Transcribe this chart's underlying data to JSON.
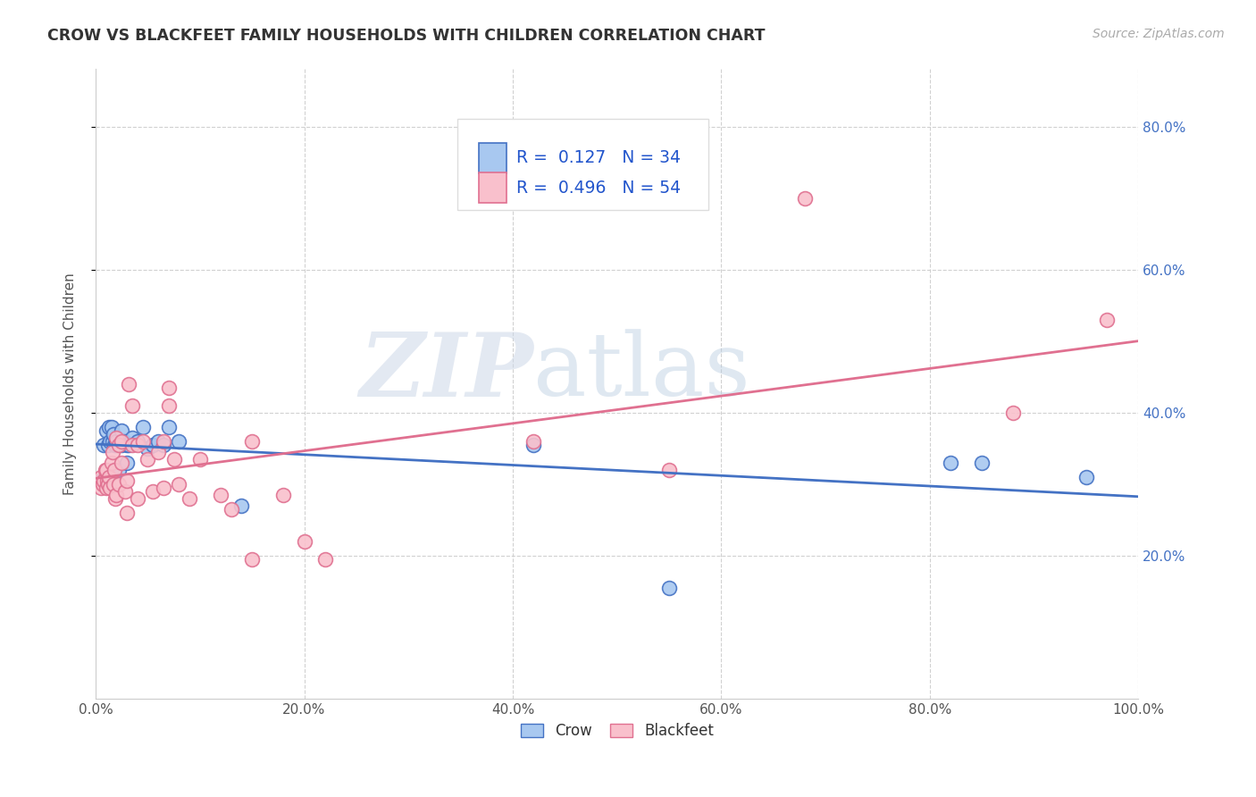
{
  "title": "CROW VS BLACKFEET FAMILY HOUSEHOLDS WITH CHILDREN CORRELATION CHART",
  "source": "Source: ZipAtlas.com",
  "ylabel": "Family Households with Children",
  "crow_R": "0.127",
  "crow_N": "34",
  "blackfeet_R": "0.496",
  "blackfeet_N": "54",
  "crow_color": "#a8c8f0",
  "crow_color_dark": "#4472C4",
  "blackfeet_color": "#f9c0cc",
  "blackfeet_color_dark": "#E07090",
  "crow_x": [
    0.005,
    0.008,
    0.01,
    0.012,
    0.013,
    0.014,
    0.015,
    0.016,
    0.017,
    0.018,
    0.02,
    0.02,
    0.022,
    0.025,
    0.025,
    0.027,
    0.03,
    0.03,
    0.032,
    0.035,
    0.04,
    0.045,
    0.05,
    0.055,
    0.06,
    0.065,
    0.07,
    0.08,
    0.14,
    0.42,
    0.55,
    0.82,
    0.85,
    0.95
  ],
  "crow_y": [
    0.305,
    0.355,
    0.375,
    0.355,
    0.38,
    0.36,
    0.38,
    0.36,
    0.37,
    0.355,
    0.355,
    0.36,
    0.32,
    0.375,
    0.355,
    0.36,
    0.355,
    0.33,
    0.355,
    0.365,
    0.36,
    0.38,
    0.35,
    0.355,
    0.36,
    0.355,
    0.38,
    0.36,
    0.27,
    0.355,
    0.155,
    0.33,
    0.33,
    0.31
  ],
  "blackfeet_x": [
    0.005,
    0.005,
    0.007,
    0.008,
    0.009,
    0.01,
    0.01,
    0.011,
    0.012,
    0.013,
    0.014,
    0.015,
    0.016,
    0.017,
    0.018,
    0.019,
    0.02,
    0.02,
    0.022,
    0.022,
    0.025,
    0.025,
    0.028,
    0.03,
    0.03,
    0.032,
    0.035,
    0.035,
    0.04,
    0.04,
    0.045,
    0.05,
    0.055,
    0.06,
    0.065,
    0.065,
    0.07,
    0.07,
    0.075,
    0.08,
    0.09,
    0.1,
    0.12,
    0.13,
    0.15,
    0.15,
    0.18,
    0.2,
    0.22,
    0.42,
    0.55,
    0.68,
    0.88,
    0.97
  ],
  "blackfeet_y": [
    0.31,
    0.295,
    0.3,
    0.305,
    0.32,
    0.32,
    0.295,
    0.305,
    0.3,
    0.31,
    0.295,
    0.33,
    0.345,
    0.3,
    0.32,
    0.28,
    0.365,
    0.285,
    0.355,
    0.3,
    0.36,
    0.33,
    0.29,
    0.305,
    0.26,
    0.44,
    0.41,
    0.355,
    0.355,
    0.28,
    0.36,
    0.335,
    0.29,
    0.345,
    0.36,
    0.295,
    0.435,
    0.41,
    0.335,
    0.3,
    0.28,
    0.335,
    0.285,
    0.265,
    0.36,
    0.195,
    0.285,
    0.22,
    0.195,
    0.36,
    0.32,
    0.7,
    0.4,
    0.53
  ],
  "legend_label_crow": "Crow",
  "legend_label_blackfeet": "Blackfeet",
  "watermark_zip": "ZIP",
  "watermark_atlas": "atlas",
  "background_color": "#ffffff",
  "grid_color": "#cccccc",
  "ylim_min": 0.0,
  "ylim_max": 0.88,
  "xlim_min": 0.0,
  "xlim_max": 1.0,
  "yticks": [
    0.2,
    0.4,
    0.6,
    0.8
  ],
  "xticks": [
    0.0,
    0.2,
    0.4,
    0.6,
    0.8,
    1.0
  ]
}
